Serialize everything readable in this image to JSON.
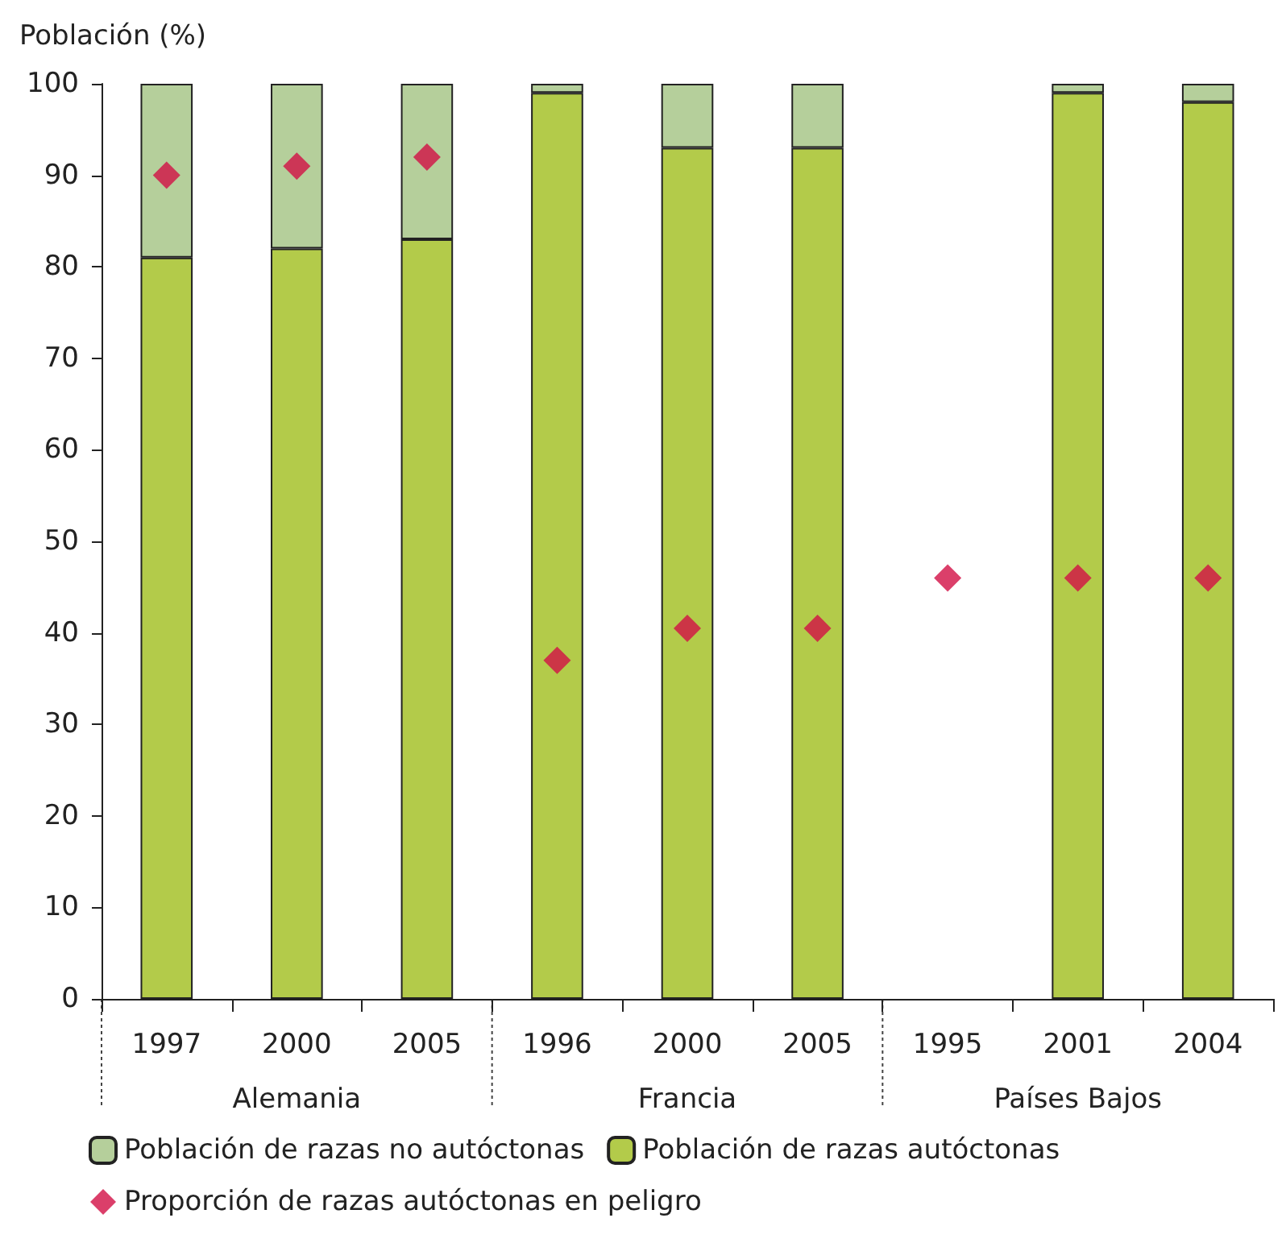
{
  "chart_data": {
    "type": "bar",
    "stacked": true,
    "ylabel": "Población (%)",
    "categories": [
      "1997",
      "2000",
      "2005",
      "1996",
      "2000",
      "2005",
      "1995",
      "2001",
      "2004"
    ],
    "annotations": [
      "Alemania",
      "Francia",
      "Países Bajos"
    ],
    "series": [
      {
        "name": "Población de razas autóctonas",
        "color": "#b3cb4a",
        "values": [
          81,
          82,
          83,
          99,
          93,
          93,
          null,
          99,
          98
        ]
      },
      {
        "name": "Población de razas no autóctonas",
        "color": "#b5cf9b",
        "values": [
          19,
          18,
          17,
          1,
          7,
          7,
          null,
          1,
          2
        ]
      },
      {
        "name": "Proporción de razas autóctonas en peligro",
        "type": "scatter",
        "color": "#d20f45",
        "marker": "diamond",
        "values": [
          90,
          91,
          92,
          37,
          40.5,
          40.5,
          46,
          46,
          46
        ]
      }
    ],
    "ylim": [
      0,
      100
    ],
    "yticks": [
      0,
      10,
      20,
      30,
      40,
      50,
      60,
      70,
      80,
      90,
      100
    ],
    "legend": "bottom",
    "grid": false
  }
}
